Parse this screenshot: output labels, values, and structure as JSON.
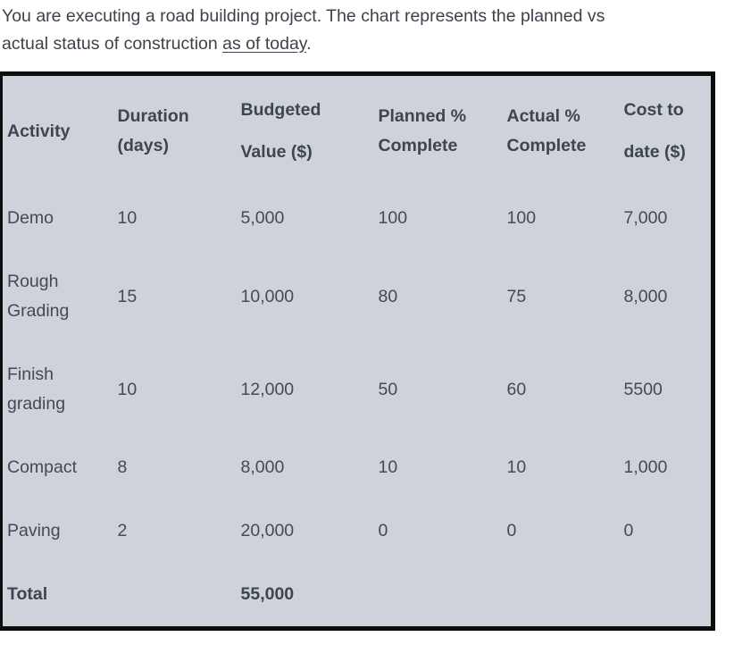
{
  "intro": {
    "line1": "You are executing a road building project. The chart represents the planned vs",
    "line2_prefix": "actual status of construction ",
    "underlined": "as of today",
    "suffix": "."
  },
  "table": {
    "columns": [
      {
        "line1": "Activity",
        "line2": ""
      },
      {
        "line1": "Duration",
        "line2": "(days)"
      },
      {
        "line1": "Budgeted",
        "line2": "Value ($)"
      },
      {
        "line1": "Planned %",
        "line2": "Complete"
      },
      {
        "line1": "Actual %",
        "line2": "Complete"
      },
      {
        "line1": "Cost to",
        "line2": "date ($)"
      }
    ],
    "rows": [
      {
        "activity": "Demo",
        "duration": "10",
        "budgeted": "5,000",
        "planned": "100",
        "actual": "100",
        "cost": "7,000"
      },
      {
        "activity": "Rough Grading",
        "duration": "15",
        "budgeted": "10,000",
        "planned": "80",
        "actual": "75",
        "cost": "8,000"
      },
      {
        "activity": "Finish grading",
        "duration": "10",
        "budgeted": "12,000",
        "planned": "50",
        "actual": "60",
        "cost": "5500"
      },
      {
        "activity": "Compact",
        "duration": "8",
        "budgeted": "8,000",
        "planned": "10",
        "actual": "10",
        "cost": "1,000"
      },
      {
        "activity": "Paving",
        "duration": "2",
        "budgeted": "20,000",
        "planned": "0",
        "actual": "0",
        "cost": "0"
      }
    ],
    "total": {
      "label": "Total",
      "budgeted": "55,000"
    }
  },
  "chart_data": {
    "type": "table",
    "title": "Planned vs actual status of road construction as of today",
    "columns": [
      "Activity",
      "Duration (days)",
      "Budgeted Value ($)",
      "Planned % Complete",
      "Actual % Complete",
      "Cost to date ($)"
    ],
    "rows": [
      [
        "Demo",
        10,
        5000,
        100,
        100,
        7000
      ],
      [
        "Rough Grading",
        15,
        10000,
        80,
        75,
        8000
      ],
      [
        "Finish grading",
        10,
        12000,
        50,
        60,
        5500
      ],
      [
        "Compact",
        8,
        8000,
        10,
        10,
        1000
      ],
      [
        "Paving",
        2,
        20000,
        0,
        0,
        0
      ],
      [
        "Total",
        null,
        55000,
        null,
        null,
        null
      ]
    ]
  },
  "colors": {
    "page_background": "#ffffff",
    "table_background": "#ced2da",
    "table_border": "#0d0d0d",
    "body_text": "#434a53",
    "header_text": "#3e454e"
  }
}
